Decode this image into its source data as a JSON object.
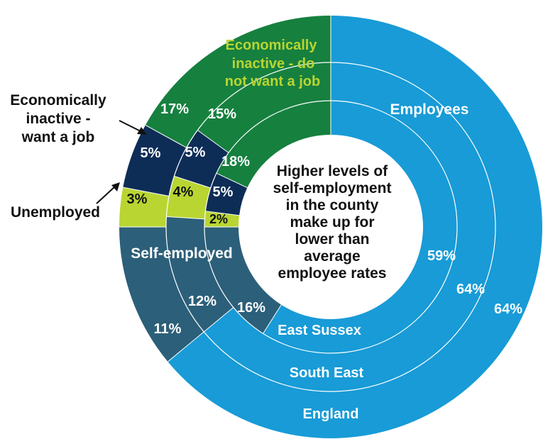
{
  "chart_data": {
    "type": "pie",
    "variant": "nested-donut",
    "title": "",
    "categories": [
      "Employees",
      "Self-employed",
      "Unemployed",
      "Economically inactive - want a job",
      "Economically inactive - do not want a job"
    ],
    "series": [
      {
        "name": "East Sussex",
        "values": [
          59,
          16,
          2,
          5,
          18
        ]
      },
      {
        "name": "South East",
        "values": [
          64,
          12,
          4,
          5,
          15
        ]
      },
      {
        "name": "England",
        "values": [
          64,
          11,
          3,
          5,
          17
        ]
      }
    ],
    "value_labels": {
      "employees": [
        "59%",
        "64%",
        "64%"
      ],
      "self_employed": [
        "16%",
        "12%",
        "11%"
      ],
      "unemployed": [
        "2%",
        "4%",
        "3%"
      ],
      "inactive_want": [
        "5%",
        "5%",
        "5%"
      ],
      "inactive_not_want": [
        "18%",
        "15%",
        "17%"
      ]
    },
    "category_labels": {
      "employees": "Employees",
      "self_employed": "Self-employed",
      "unemployed": "Unemployed",
      "inactive_want_line1": "Economically",
      "inactive_want_line2": "inactive -",
      "inactive_want_line3": "want a job",
      "inactive_not_want_line1": "Economically",
      "inactive_not_want_line2": "inactive - do",
      "inactive_not_want_line3": "not want a job"
    },
    "center_text": [
      "Higher levels of",
      "self-employment",
      "in the county",
      "make up for",
      "lower than",
      "average",
      "employee rates"
    ],
    "colors": {
      "employees": "#189bd7",
      "self_employed": "#2c5f79",
      "unemployed": "#b9d532",
      "inactive_want": "#0d2d57",
      "inactive_not_want": "#16803f",
      "separator": "#ffffff"
    },
    "legend": "none"
  }
}
